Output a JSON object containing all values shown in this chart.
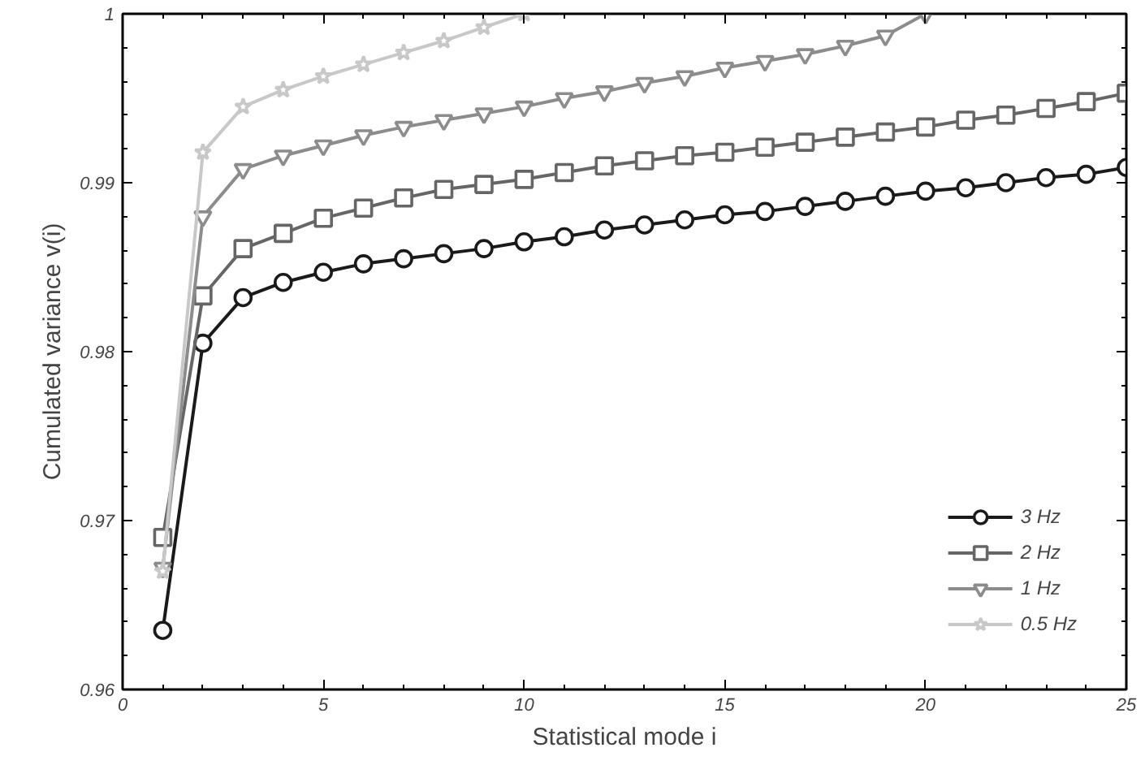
{
  "chart_data": {
    "type": "line",
    "xlabel": "Statistical mode i",
    "ylabel": "Cumulated variance v(i)",
    "xlim": [
      0,
      25
    ],
    "ylim": [
      0.96,
      1
    ],
    "xticks": [
      0,
      5,
      10,
      15,
      20,
      25
    ],
    "yticks": [
      0.96,
      0.97,
      0.98,
      0.99,
      1
    ],
    "legend": "bottom right",
    "grid": false,
    "series": [
      {
        "name": "3 Hz",
        "color": "#1a1a1a",
        "marker": "circle",
        "x": [
          1,
          2,
          3,
          4,
          5,
          6,
          7,
          8,
          9,
          10,
          11,
          12,
          13,
          14,
          15,
          16,
          17,
          18,
          19,
          20,
          21,
          22,
          23,
          24,
          25
        ],
        "values": [
          0.9635,
          0.9805,
          0.9832,
          0.9841,
          0.9847,
          0.9852,
          0.9855,
          0.9858,
          0.9861,
          0.9865,
          0.9868,
          0.9872,
          0.9875,
          0.9878,
          0.9881,
          0.9883,
          0.9886,
          0.9889,
          0.9892,
          0.9895,
          0.9897,
          0.99,
          0.9903,
          0.9905,
          0.9909
        ]
      },
      {
        "name": "2 Hz",
        "color": "#666666",
        "marker": "square",
        "x": [
          1,
          2,
          3,
          4,
          5,
          6,
          7,
          8,
          9,
          10,
          11,
          12,
          13,
          14,
          15,
          16,
          17,
          18,
          19,
          20,
          21,
          22,
          23,
          24,
          25
        ],
        "values": [
          0.969,
          0.9833,
          0.9861,
          0.987,
          0.9879,
          0.9885,
          0.9891,
          0.9896,
          0.9899,
          0.9902,
          0.9906,
          0.991,
          0.9913,
          0.9916,
          0.9918,
          0.9921,
          0.9924,
          0.9927,
          0.993,
          0.9933,
          0.9937,
          0.994,
          0.9944,
          0.9948,
          0.9953
        ]
      },
      {
        "name": "1 Hz",
        "color": "#8c8c8c",
        "marker": "triangle",
        "x": [
          1,
          2,
          3,
          4,
          5,
          6,
          7,
          8,
          9,
          10,
          11,
          12,
          13,
          14,
          15,
          16,
          17,
          18,
          19,
          20
        ],
        "values": [
          0.9672,
          0.988,
          0.9908,
          0.9916,
          0.9922,
          0.9928,
          0.9933,
          0.9937,
          0.9941,
          0.9945,
          0.995,
          0.9954,
          0.9959,
          0.9963,
          0.9968,
          0.9972,
          0.9976,
          0.9981,
          0.9987,
          1.0
        ]
      },
      {
        "name": "0.5 Hz",
        "color": "#c8c8c8",
        "marker": "star",
        "x": [
          1,
          2,
          3,
          4,
          5,
          6,
          7,
          8,
          9,
          10
        ],
        "values": [
          0.967,
          0.9918,
          0.9945,
          0.9955,
          0.9963,
          0.997,
          0.9977,
          0.9984,
          0.9992,
          1.0
        ]
      }
    ]
  }
}
